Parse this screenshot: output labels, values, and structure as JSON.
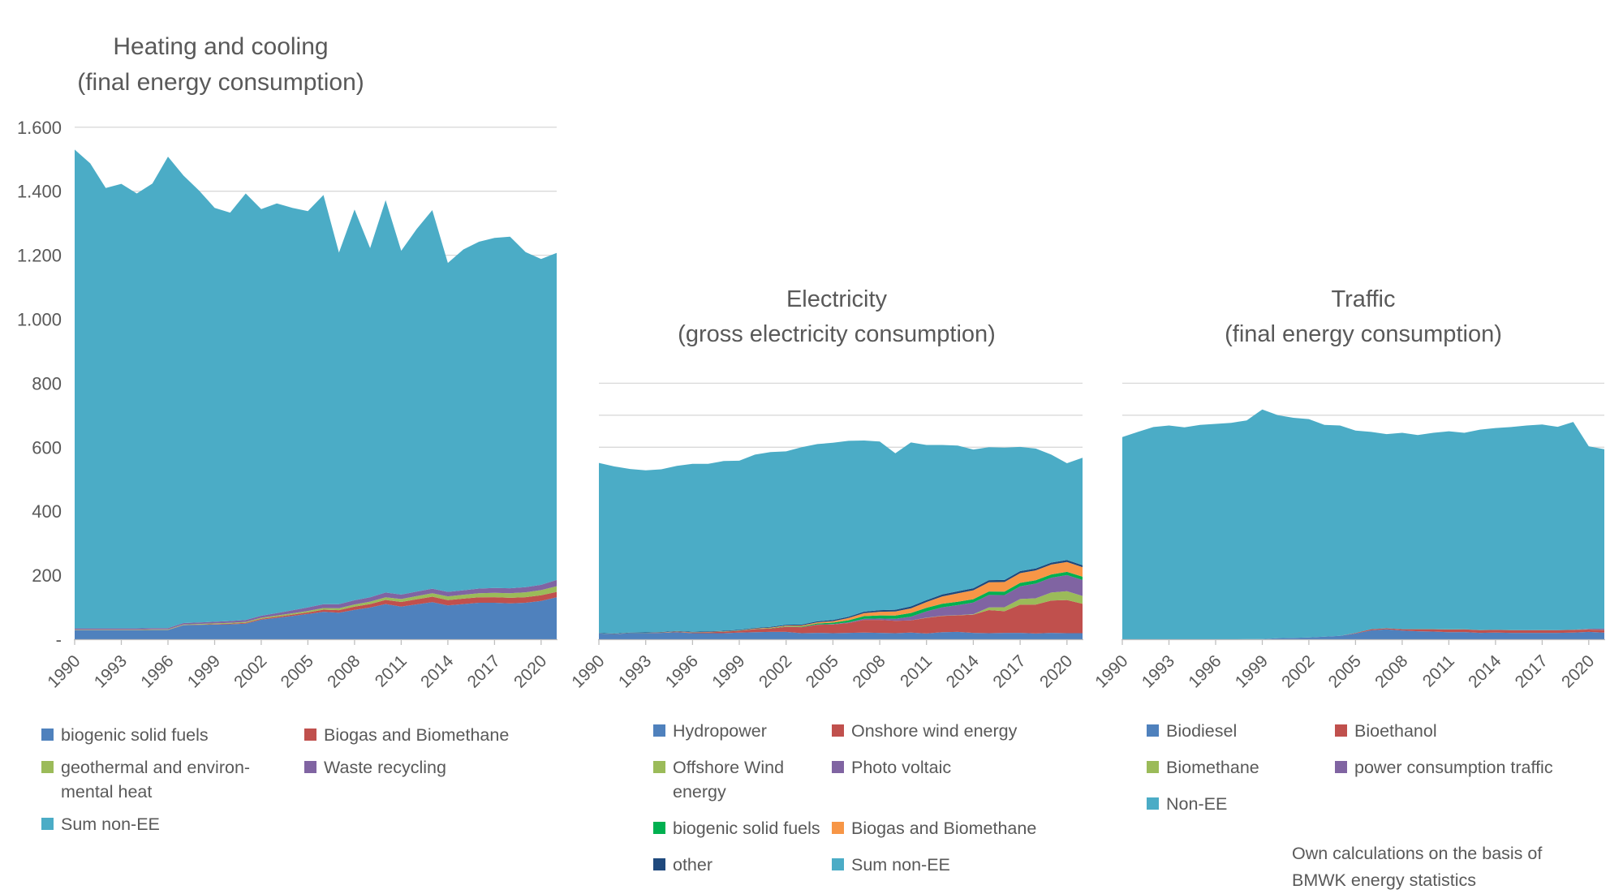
{
  "figure": {
    "colors": {
      "blue": "#4F81BD",
      "red": "#C0504D",
      "olive": "#9BBB59",
      "purple": "#8064A2",
      "teal": "#4BACC6",
      "orange": "#F79646",
      "green": "#00B050",
      "navy": "#1F497D"
    },
    "axis": {
      "text_color": "#595959",
      "grid_color": "#D9D9D9",
      "line_color": "#BFBFBF"
    },
    "source_note_lines": [
      "Own calculations on the basis of",
      "BMWK energy statistics"
    ]
  },
  "years": [
    1990,
    1991,
    1992,
    1993,
    1994,
    1995,
    1996,
    1997,
    1998,
    1999,
    2000,
    2001,
    2002,
    2003,
    2004,
    2005,
    2006,
    2007,
    2008,
    2009,
    2010,
    2011,
    2012,
    2013,
    2014,
    2015,
    2016,
    2017,
    2018,
    2019,
    2020,
    2021
  ],
  "x_tick_labels": [
    "1990",
    "1993",
    "1996",
    "1999",
    "2002",
    "2005",
    "2008",
    "2011",
    "2014",
    "2017",
    "2020"
  ],
  "chart_data": [
    {
      "id": "heating",
      "type": "area",
      "stacked": true,
      "title_lines": [
        "Heating and cooling",
        "(final energy consumption)"
      ],
      "legend_position": "bottom",
      "x_label_rotation": -45,
      "y_axis": {
        "ylim": [
          0,
          1600
        ],
        "gridlines": [
          200,
          400,
          600,
          800,
          1000,
          1200,
          1400,
          1600
        ],
        "labels_visible": true,
        "tick_labels": [
          {
            "value": 1600,
            "label": "1.600"
          },
          {
            "value": 1400,
            "label": "1.400"
          },
          {
            "value": 1200,
            "label": "1.200"
          },
          {
            "value": 1000,
            "label": "1.000"
          },
          {
            "value": 800,
            "label": "800"
          },
          {
            "value": 600,
            "label": "600"
          },
          {
            "value": 400,
            "label": "400"
          },
          {
            "value": 200,
            "label": "200"
          },
          {
            "value": 0,
            "label": "-"
          }
        ]
      },
      "total_including_ee": [
        1530,
        1487,
        1410,
        1423,
        1393,
        1424,
        1508,
        1449,
        1402,
        1348,
        1333,
        1393,
        1344,
        1362,
        1348,
        1338,
        1388,
        1208,
        1343,
        1222,
        1372,
        1214,
        1282,
        1341,
        1176,
        1218,
        1242,
        1254,
        1258,
        1210,
        1188,
        1207
      ],
      "series": [
        {
          "name": "biogenic solid fuels",
          "color_key": "blue",
          "values": [
            28,
            28,
            28,
            28,
            28,
            29,
            29,
            44,
            45,
            46,
            47,
            49,
            61,
            67,
            73,
            79,
            86,
            83,
            92,
            99,
            110,
            102,
            109,
            116,
            106,
            110,
            114,
            114,
            112,
            114,
            120,
            131
          ]
        },
        {
          "name": "Biogas and Biomethane",
          "color_key": "red",
          "values": [
            0.5,
            0.5,
            0.5,
            0.5,
            0.5,
            0.5,
            0.5,
            0.5,
            1,
            1.5,
            2,
            2.5,
            3,
            3.5,
            4,
            5,
            6.5,
            8,
            10,
            11,
            13,
            14.5,
            16,
            17,
            16.5,
            17,
            17,
            17.5,
            17.5,
            17.5,
            17.5,
            17
          ]
        },
        {
          "name": "geothermal and environmental heat",
          "color_key": "olive",
          "values": [
            1.5,
            1.5,
            1.5,
            1.5,
            1.5,
            1.5,
            1.6,
            1.8,
            2,
            2.2,
            2.5,
            2.8,
            3.1,
            3.5,
            4,
            4.5,
            5.2,
            6,
            6.8,
            7.6,
            8.4,
            9.2,
            10,
            10.8,
            11.5,
            12.2,
            13,
            13.8,
            14.5,
            15.3,
            16.2,
            17.8
          ]
        },
        {
          "name": "Waste recycling",
          "color_key": "purple",
          "values": [
            4,
            4,
            4,
            4,
            4,
            4,
            4,
            4.5,
            4.5,
            5,
            5.5,
            6,
            6.5,
            8,
            9.5,
            11,
            12,
            12.5,
            13,
            13.5,
            14.5,
            14,
            14,
            14.5,
            14,
            14,
            14.5,
            15,
            15.5,
            16,
            16.5,
            19.5
          ]
        },
        {
          "name": "Sum non-EE",
          "color_key": "teal",
          "values": "remainder"
        }
      ],
      "legend": [
        {
          "label": "biogenic solid fuels",
          "color_key": "blue"
        },
        {
          "label": "Biogas and Biomethane",
          "color_key": "red"
        },
        {
          "label": "geothermal and environ-\nmental heat",
          "color_key": "olive"
        },
        {
          "label": "Waste recycling",
          "color_key": "purple"
        },
        {
          "label": "Sum non-EE",
          "color_key": "teal"
        }
      ]
    },
    {
      "id": "electricity",
      "type": "area",
      "stacked": true,
      "title_lines": [
        "Electricity",
        "(gross electricity consumption)"
      ],
      "legend_position": "bottom",
      "x_label_rotation": -45,
      "y_axis": {
        "ylim": [
          0,
          830
        ],
        "gridlines": [
          600,
          700,
          800
        ],
        "labels_visible": false,
        "tick_labels": null
      },
      "total_including_ee": [
        551,
        540,
        532,
        528,
        531,
        542,
        548,
        548,
        557,
        558,
        577,
        585,
        587,
        600,
        610,
        614,
        620,
        621,
        618,
        581,
        615,
        607,
        607,
        605,
        593,
        600,
        599,
        601,
        596,
        577,
        550,
        567
      ],
      "series": [
        {
          "name": "Hydropower",
          "color_key": "blue",
          "values": [
            18,
            16,
            19,
            19,
            20,
            22,
            19,
            19,
            19,
            21,
            22,
            23,
            23,
            19,
            20,
            19,
            20,
            21,
            20,
            19,
            21,
            18,
            22,
            23,
            20,
            19,
            20,
            20,
            18,
            20,
            19,
            19
          ]
        },
        {
          "name": "Onshore wind energy",
          "color_key": "red",
          "values": [
            0.1,
            0.1,
            0.3,
            0.6,
            0.9,
            1.5,
            2,
            2.8,
            4.5,
            5.5,
            9.5,
            10.5,
            15.8,
            18.7,
            25.5,
            27.2,
            30.7,
            39.7,
            40.6,
            38.6,
            37.8,
            48.9,
            50.7,
            51.7,
            57,
            72.3,
            67.8,
            88,
            90.5,
            101.2,
            103.7,
            92
          ]
        },
        {
          "name": "Offshore Wind energy",
          "color_key": "olive",
          "values": [
            0,
            0,
            0,
            0,
            0,
            0,
            0,
            0,
            0,
            0,
            0,
            0,
            0,
            0,
            0,
            0,
            0,
            0,
            0,
            0,
            0.2,
            0.6,
            0.7,
            0.9,
            1.4,
            8.3,
            12.3,
            17.7,
            19.5,
            24.7,
            27.3,
            24.4
          ]
        },
        {
          "name": "Photo voltaic",
          "color_key": "purple",
          "values": [
            0,
            0,
            0,
            0,
            0,
            0,
            0,
            0,
            0,
            0,
            0.1,
            0.1,
            0.2,
            0.3,
            0.6,
            1.3,
            2.2,
            3.1,
            4.4,
            6.6,
            11.7,
            19.6,
            26.4,
            31,
            36.1,
            38.7,
            38.1,
            39.8,
            45.8,
            46.4,
            50.6,
            50
          ]
        },
        {
          "name": "biogenic solid fuels",
          "color_key": "green",
          "values": [
            0.2,
            0.2,
            0.3,
            0.3,
            0.3,
            0.4,
            0.4,
            0.4,
            0.5,
            0.5,
            0.6,
            0.8,
            1.3,
            2.1,
            3.3,
            4.5,
            6.5,
            8.5,
            9.5,
            10,
            11.4,
            11.2,
            11,
            10.8,
            10.6,
            11,
            10.8,
            10.6,
            10.4,
            10.2,
            10,
            10
          ]
        },
        {
          "name": "Biogas and Biomethane",
          "color_key": "orange",
          "values": [
            0,
            0.1,
            0.1,
            0.2,
            0.3,
            0.4,
            0.5,
            0.6,
            0.8,
            1,
            1.5,
            2,
            2.5,
            3,
            3.5,
            4.5,
            7,
            9.5,
            11.5,
            12.5,
            14.5,
            18,
            23,
            26,
            28,
            29,
            30,
            30.5,
            31,
            31,
            31,
            30
          ]
        },
        {
          "name": "other",
          "color_key": "navy",
          "values": [
            1.3,
            1.3,
            1.4,
            1.4,
            1.4,
            1.5,
            1.6,
            1.7,
            1.8,
            1.8,
            1.9,
            2.2,
            2.5,
            2.8,
            3.2,
            3.5,
            4,
            4.5,
            5,
            5.5,
            6,
            6,
            6.2,
            6.3,
            6.4,
            6.5,
            6.4,
            6.3,
            6.2,
            6.1,
            6,
            6
          ]
        },
        {
          "name": "Sum non-EE",
          "color_key": "teal",
          "values": "remainder"
        }
      ],
      "legend": [
        {
          "label": "Hydropower",
          "color_key": "blue"
        },
        {
          "label": "Onshore wind energy",
          "color_key": "red"
        },
        {
          "label": "Offshore Wind energy",
          "color_key": "olive"
        },
        {
          "label": "Photo voltaic",
          "color_key": "purple"
        },
        {
          "label": "biogenic solid fuels",
          "color_key": "green"
        },
        {
          "label": "Biogas and Biomethane",
          "color_key": "orange"
        },
        {
          "label": "other",
          "color_key": "navy"
        },
        {
          "label": "Sum non-EE",
          "color_key": "teal"
        }
      ]
    },
    {
      "id": "traffic",
      "type": "area",
      "stacked": true,
      "title_lines": [
        "Traffic",
        "(final energy consumption)"
      ],
      "legend_position": "bottom",
      "x_label_rotation": -45,
      "y_axis": {
        "ylim": [
          0,
          830
        ],
        "gridlines": [
          600,
          700,
          800
        ],
        "labels_visible": false,
        "tick_labels": null
      },
      "total_including_ee": [
        632,
        648,
        663,
        668,
        662,
        670,
        673,
        676,
        684,
        718,
        700,
        692,
        688,
        670,
        668,
        652,
        648,
        641,
        645,
        638,
        645,
        650,
        645,
        655,
        660,
        663,
        668,
        671,
        664,
        679,
        603,
        594
      ],
      "series": [
        {
          "name": "Biodiesel",
          "color_key": "blue",
          "values": [
            0,
            0,
            0,
            0,
            0,
            0,
            0,
            0,
            0.3,
            0.5,
            3.5,
            4.5,
            5.5,
            8,
            11,
            18,
            28,
            31,
            27,
            25,
            24,
            22,
            22.5,
            20,
            21,
            20,
            20,
            20,
            20,
            21,
            23,
            21
          ]
        },
        {
          "name": "Bioethanol",
          "color_key": "red",
          "values": [
            0,
            0,
            0,
            0,
            0,
            0,
            0,
            0,
            0,
            0,
            0,
            0,
            0,
            0,
            0,
            1.5,
            3.5,
            3.3,
            4.5,
            6.5,
            7.5,
            8.5,
            8.5,
            8.5,
            8.5,
            8.4,
            8.3,
            8.5,
            8.3,
            8.5,
            7.5,
            7.7
          ]
        },
        {
          "name": "Biomethane",
          "color_key": "olive",
          "values": [
            0,
            0,
            0,
            0,
            0,
            0,
            0,
            0,
            0,
            0,
            0,
            0,
            0,
            0,
            0,
            0,
            0,
            0,
            0,
            0.2,
            0.3,
            0.4,
            0.5,
            0.5,
            0.5,
            0.4,
            0.4,
            0.4,
            0.4,
            0.4,
            0.4,
            0.5
          ]
        },
        {
          "name": "power consumption traffic",
          "color_key": "purple",
          "values": [
            0,
            0,
            0,
            0,
            0,
            0,
            0,
            0,
            0,
            0,
            0,
            0,
            0,
            0,
            0,
            0,
            0,
            0,
            0,
            0,
            0,
            0,
            0,
            0,
            0,
            0,
            0,
            0,
            0,
            0,
            2,
            4
          ]
        },
        {
          "name": "Non-EE",
          "color_key": "teal",
          "values": "remainder"
        }
      ],
      "legend": [
        {
          "label": "Biodiesel",
          "color_key": "blue"
        },
        {
          "label": "Bioethanol",
          "color_key": "red"
        },
        {
          "label": "Biomethane",
          "color_key": "olive"
        },
        {
          "label": "power consumption traffic",
          "color_key": "purple"
        },
        {
          "label": "Non-EE",
          "color_key": "teal"
        }
      ]
    }
  ]
}
